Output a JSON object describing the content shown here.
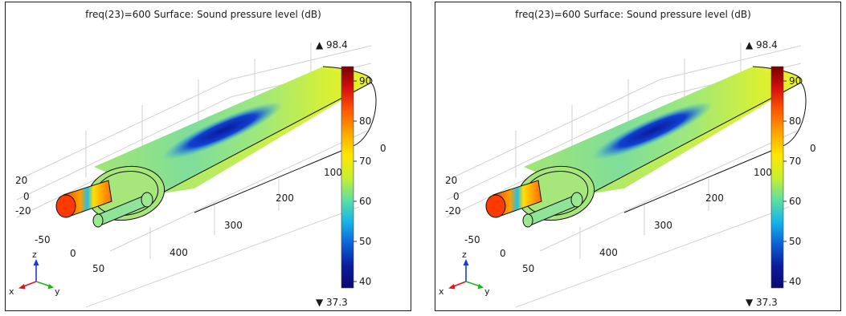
{
  "panels": [
    {
      "id": "left",
      "title": "freq(23)=600   Surface: Sound pressure level (dB)",
      "colorbar": {
        "max_label": "▲ 98.4",
        "min_label": "▼ 37.3",
        "ticks": [
          "90",
          "80",
          "70",
          "60",
          "50",
          "40"
        ],
        "colors_top_to_bottom": [
          "#7a0000",
          "#d81010",
          "#ff5a00",
          "#ffa600",
          "#ffe600",
          "#c8ef2e",
          "#5ee0a0",
          "#16b6e8",
          "#0c62d8",
          "#0a1c9c",
          "#0a0a70"
        ]
      },
      "axes": {
        "x_ticks": [
          "20",
          "0",
          "-20"
        ],
        "y_ticks": [
          "-50",
          "0",
          "50"
        ],
        "length_ticks": [
          "100",
          "200",
          "300",
          "400"
        ],
        "corner_tick": "0"
      },
      "triad": {
        "x": "x",
        "y": "y",
        "z": "z"
      }
    },
    {
      "id": "right",
      "title": "freq(23)=600   Surface: Sound pressure level (dB)",
      "colorbar": {
        "max_label": "▲ 98.4",
        "min_label": "▼ 37.3",
        "ticks": [
          "90",
          "80",
          "70",
          "60",
          "50",
          "40"
        ],
        "colors_top_to_bottom": [
          "#7a0000",
          "#d81010",
          "#ff5a00",
          "#ffa600",
          "#ffe600",
          "#c8ef2e",
          "#5ee0a0",
          "#16b6e8",
          "#0c62d8",
          "#0a1c9c",
          "#0a0a70"
        ]
      },
      "axes": {
        "x_ticks": [
          "20",
          "0",
          "-20"
        ],
        "y_ticks": [
          "-50",
          "0",
          "50"
        ],
        "length_ticks": [
          "100",
          "200",
          "300",
          "400"
        ],
        "corner_tick": "0"
      },
      "triad": {
        "x": "x",
        "y": "y",
        "z": "z"
      }
    }
  ]
}
